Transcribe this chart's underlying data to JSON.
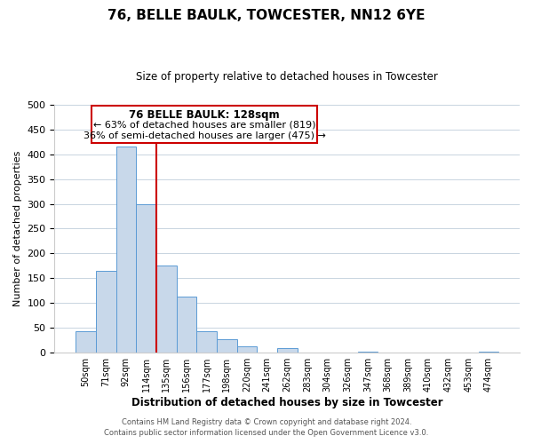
{
  "title": "76, BELLE BAULK, TOWCESTER, NN12 6YE",
  "subtitle": "Size of property relative to detached houses in Towcester",
  "xlabel": "Distribution of detached houses by size in Towcester",
  "ylabel": "Number of detached properties",
  "bar_labels": [
    "50sqm",
    "71sqm",
    "92sqm",
    "114sqm",
    "135sqm",
    "156sqm",
    "177sqm",
    "198sqm",
    "220sqm",
    "241sqm",
    "262sqm",
    "283sqm",
    "304sqm",
    "326sqm",
    "347sqm",
    "368sqm",
    "389sqm",
    "410sqm",
    "432sqm",
    "453sqm",
    "474sqm"
  ],
  "bar_values": [
    43,
    165,
    415,
    300,
    176,
    113,
    43,
    27,
    13,
    0,
    10,
    0,
    0,
    0,
    3,
    0,
    0,
    0,
    0,
    0,
    2
  ],
  "bar_color": "#c8d8ea",
  "bar_edge_color": "#5b9bd5",
  "vline_color": "#cc0000",
  "ylim": [
    0,
    500
  ],
  "yticks": [
    0,
    50,
    100,
    150,
    200,
    250,
    300,
    350,
    400,
    450,
    500
  ],
  "annotation_title": "76 BELLE BAULK: 128sqm",
  "annotation_line1": "← 63% of detached houses are smaller (819)",
  "annotation_line2": "36% of semi-detached houses are larger (475) →",
  "annotation_box_color": "#ffffff",
  "annotation_box_edge": "#cc0000",
  "footer_line1": "Contains HM Land Registry data © Crown copyright and database right 2024.",
  "footer_line2": "Contains public sector information licensed under the Open Government Licence v3.0.",
  "background_color": "#ffffff",
  "grid_color": "#c8d4e0"
}
